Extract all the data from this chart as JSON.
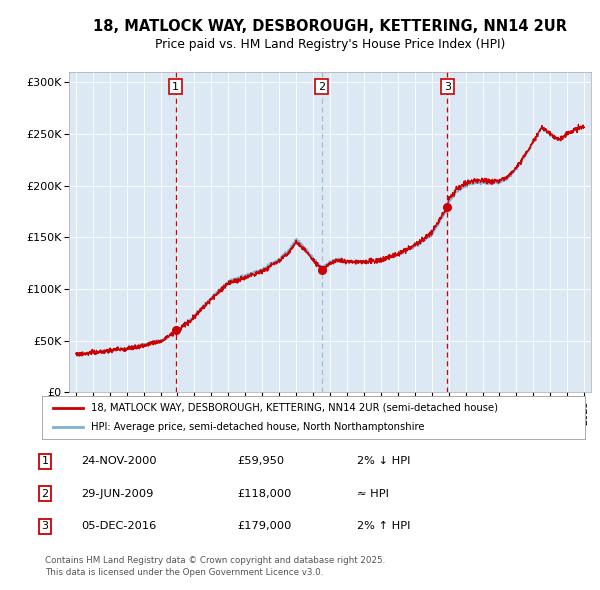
{
  "title_line1": "18, MATLOCK WAY, DESBOROUGH, KETTERING, NN14 2UR",
  "title_line2": "Price paid vs. HM Land Registry's House Price Index (HPI)",
  "bg_color": "#dce9f5",
  "red_line_color": "#cc0000",
  "blue_line_color": "#7fafd4",
  "sale_marker_color": "#cc0000",
  "dashed_red_color": "#cc0000",
  "dashed_blue_color": "#aabbcc",
  "ylim": [
    0,
    310000
  ],
  "yticks": [
    0,
    50000,
    100000,
    150000,
    200000,
    250000,
    300000
  ],
  "ytick_labels": [
    "£0",
    "£50K",
    "£100K",
    "£150K",
    "£200K",
    "£250K",
    "£300K"
  ],
  "sale1_date": 2000.9,
  "sale1_price": 59950,
  "sale2_date": 2009.5,
  "sale2_price": 118000,
  "sale3_date": 2016.92,
  "sale3_price": 179000,
  "legend_label1": "18, MATLOCK WAY, DESBOROUGH, KETTERING, NN14 2UR (semi-detached house)",
  "legend_label2": "HPI: Average price, semi-detached house, North Northamptonshire",
  "table_data": [
    {
      "num": "1",
      "date": "24-NOV-2000",
      "price": "£59,950",
      "change": "2% ↓ HPI"
    },
    {
      "num": "2",
      "date": "29-JUN-2009",
      "price": "£118,000",
      "change": "≈ HPI"
    },
    {
      "num": "3",
      "date": "05-DEC-2016",
      "price": "£179,000",
      "change": "2% ↑ HPI"
    }
  ],
  "footer": "Contains HM Land Registry data © Crown copyright and database right 2025.\nThis data is licensed under the Open Government Licence v3.0."
}
